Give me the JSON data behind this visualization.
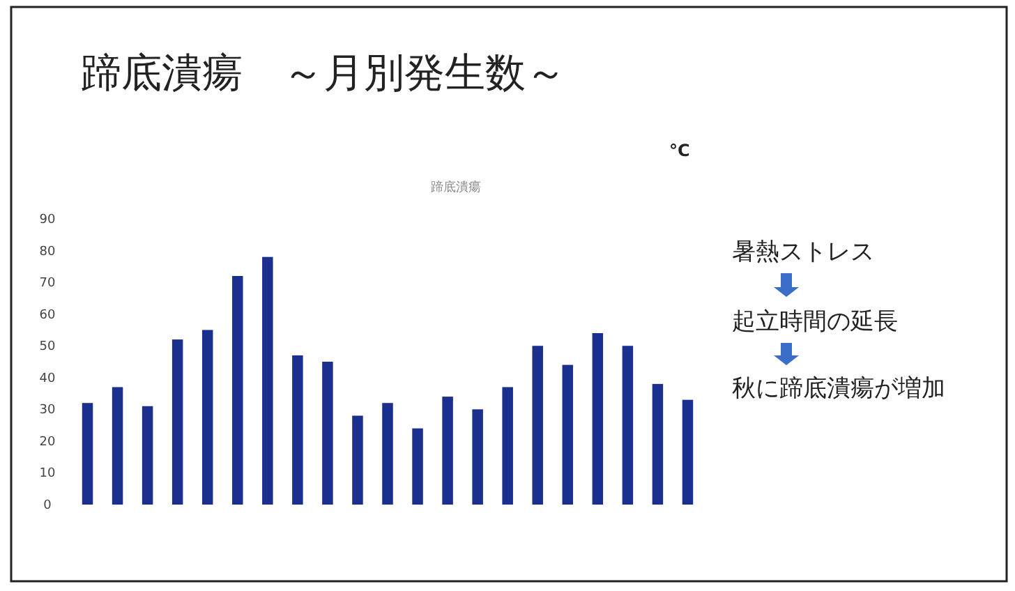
{
  "chart_data": {
    "type": "bar",
    "title": "蹄底潰瘍　～月別発生数～",
    "subtitle": "蹄底潰瘍",
    "annotations": [
      "°C",
      "暑熱ストレス",
      "起立時間の延長",
      "秋に蹄底潰瘍が増加"
    ],
    "categories": [
      null,
      null,
      null,
      null,
      null,
      null,
      null,
      null,
      null,
      null,
      null,
      null,
      null,
      null,
      null,
      null,
      null,
      null,
      null,
      null,
      null
    ],
    "values": [
      32,
      37,
      31,
      52,
      55,
      72,
      78,
      47,
      45,
      28,
      32,
      24,
      34,
      30,
      37,
      50,
      44,
      54,
      50,
      38,
      33
    ],
    "color": "#1b2f8f",
    "ylim": [
      0,
      90
    ],
    "yticks": [
      0,
      10,
      20,
      30,
      40,
      50,
      60,
      70,
      80,
      90
    ],
    "grid": false
  }
}
